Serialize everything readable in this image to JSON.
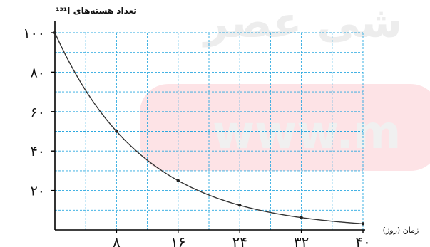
{
  "watermark": {
    "line1": "شی عصر",
    "line2": "www.m",
    "band_color": "#fde3e6",
    "text_color": "#f0f0f0",
    "line1_color": "#ededed"
  },
  "chart_data": {
    "type": "line",
    "ylabel": "تعداد هسته‌های ¹³¹I",
    "xlabel": "زمان (روز)",
    "x_ticks": [
      8,
      16,
      24,
      32,
      40
    ],
    "x_tick_labels": [
      "۸",
      "۱۶",
      "۲۴",
      "۳۲",
      "۴۰"
    ],
    "y_ticks": [
      20,
      40,
      60,
      80,
      100
    ],
    "y_tick_labels": [
      "۲۰",
      "۴۰",
      "۶۰",
      "۸۰",
      "۱۰۰"
    ],
    "xlim": [
      0,
      40
    ],
    "ylim": [
      0,
      100
    ],
    "grid": true,
    "grid_x_step": 4,
    "grid_y_step": 10,
    "grid_color": "#29a8e0",
    "line_color": "#333333",
    "series": [
      {
        "points": [
          {
            "x": 0,
            "y": 100
          },
          {
            "x": 8,
            "y": 50
          },
          {
            "x": 16,
            "y": 25
          },
          {
            "x": 24,
            "y": 12.5
          },
          {
            "x": 32,
            "y": 6.25
          },
          {
            "x": 40,
            "y": 3.125
          }
        ]
      }
    ]
  }
}
